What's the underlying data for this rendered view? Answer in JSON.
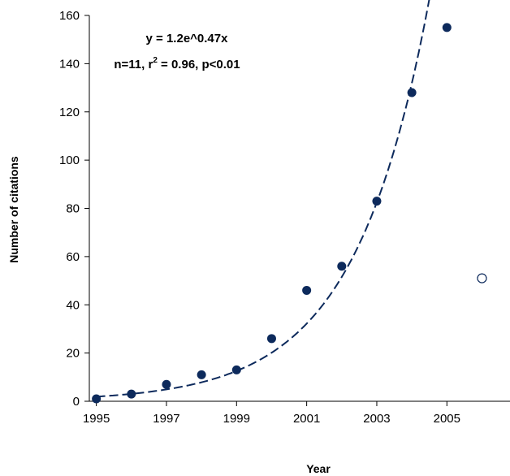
{
  "chart_data": {
    "type": "scatter",
    "title": "",
    "xlabel": "Year",
    "ylabel": "Number of citations",
    "xlim": [
      1994.8,
      2006.8
    ],
    "ylim": [
      0,
      160
    ],
    "x_ticks": [
      1995,
      1997,
      1999,
      2001,
      2003,
      2005
    ],
    "y_ticks": [
      0,
      20,
      40,
      60,
      80,
      100,
      120,
      140,
      160
    ],
    "grid": false,
    "legend": "none",
    "series": [
      {
        "marker": "filled-circle",
        "color": "#0d2a5c",
        "points": [
          {
            "x": 1995,
            "y": 1
          },
          {
            "x": 1996,
            "y": 3
          },
          {
            "x": 1997,
            "y": 7
          },
          {
            "x": 1998,
            "y": 11
          },
          {
            "x": 1999,
            "y": 13
          },
          {
            "x": 2000,
            "y": 26
          },
          {
            "x": 2001,
            "y": 46
          },
          {
            "x": 2002,
            "y": 56
          },
          {
            "x": 2003,
            "y": 83
          },
          {
            "x": 2004,
            "y": 128
          },
          {
            "x": 2005,
            "y": 155
          }
        ]
      },
      {
        "marker": "open-circle",
        "color": "#0d2a5c",
        "points": [
          {
            "x": 2006,
            "y": 51
          }
        ]
      }
    ],
    "trendline": {
      "style": "dashed",
      "color": "#0d2a5c",
      "equation": "y = 1.2e^0.47x",
      "a": 1.2,
      "b": 0.47,
      "x_origin": 1994,
      "x_range": [
        1995,
        2004.6
      ]
    },
    "annotation": {
      "equation": "y = 1.2e^0.47x",
      "stats_prefix": "n=11, r",
      "stats_sup": "2",
      "stats_suffix": " = 0.96, p<0.01"
    }
  }
}
